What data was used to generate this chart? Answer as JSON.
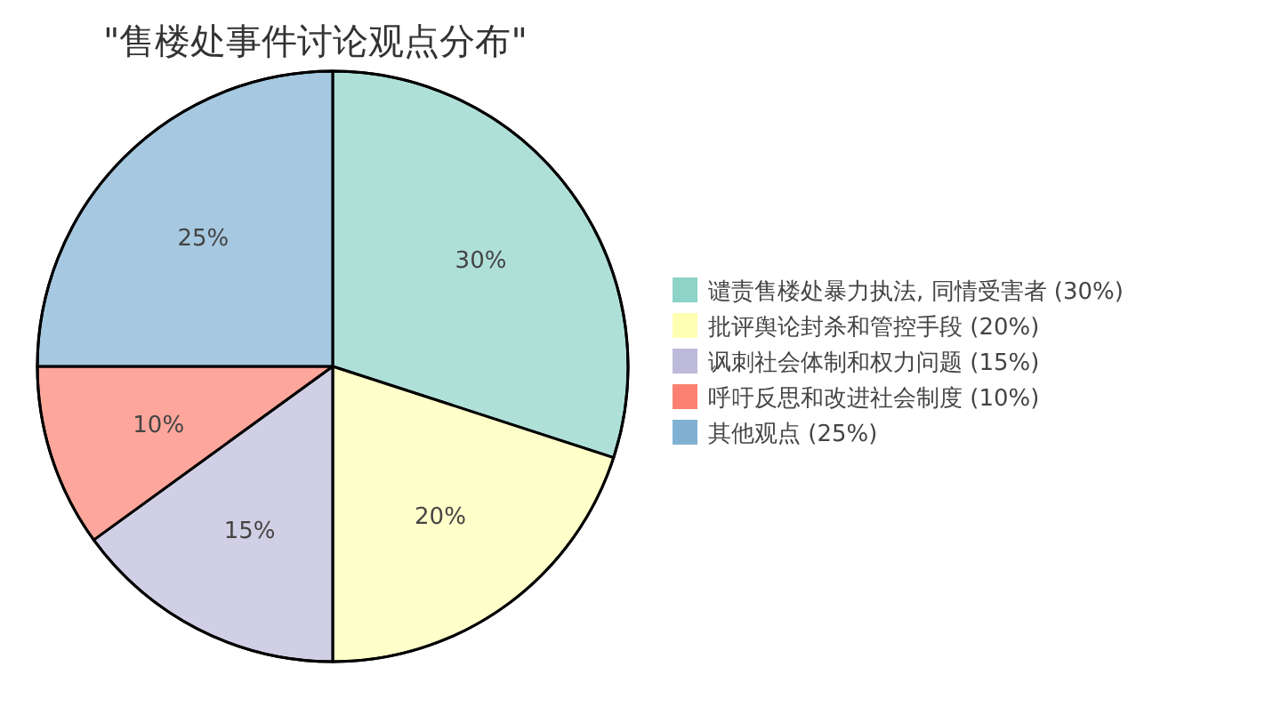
{
  "chart_data": {
    "type": "pie",
    "title": "\"售楼处事件讨论观点分布\"",
    "categories": [
      "谴责售楼处暴力执法, 同情受害者 (30%)",
      "批评舆论封杀和管控手段 (20%)",
      "讽刺社会体制和权力问题 (15%)",
      "呼吁反思和改进社会制度 (10%)",
      "其他观点 (25%)"
    ],
    "values": [
      30,
      20,
      15,
      10,
      25
    ],
    "colors": [
      "#8dd3c7",
      "#ffffb3",
      "#bebada",
      "#fb8072",
      "#80b1d3"
    ],
    "value_labels": [
      "30%",
      "20%",
      "15%",
      "10%",
      "25%"
    ],
    "legend": "right"
  }
}
